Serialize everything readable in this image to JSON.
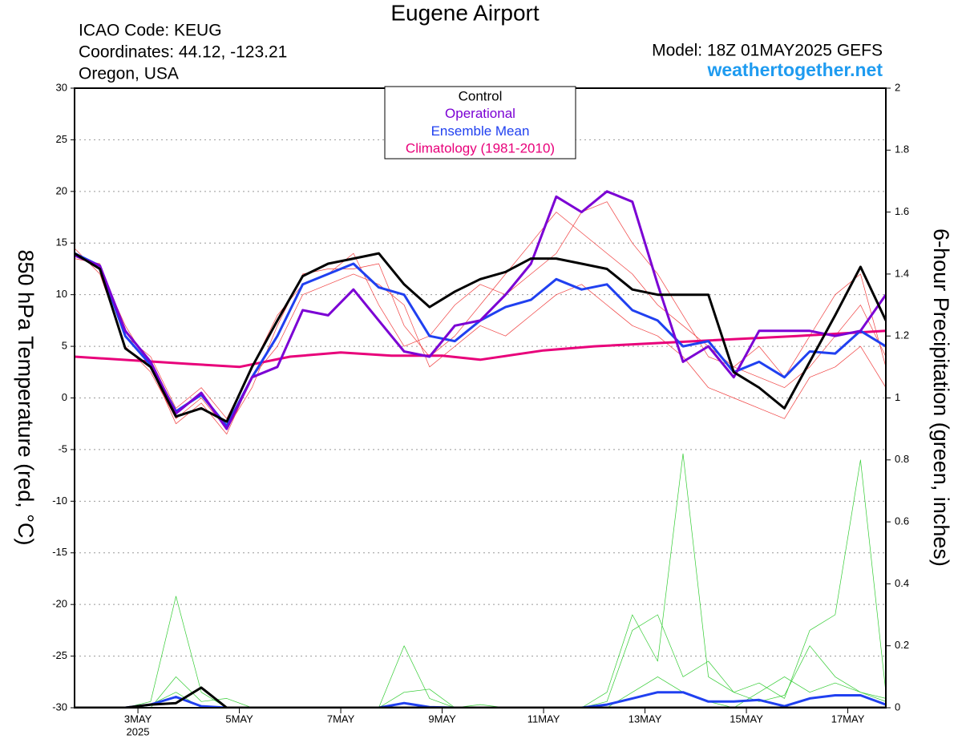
{
  "chart_data": {
    "type": "line",
    "title": "Eugene Airport",
    "info": [
      "ICAO Code: KEUG",
      "Coordinates: 44.12, -123.21",
      "Oregon, USA"
    ],
    "model": "Model: 18Z 01MAY2025 GEFS",
    "site": "weathertogether.net",
    "ylabel": "850 hPa Temperature (red, °C)",
    "y2label": "6-hour Precipitation (green, inches)",
    "year_label": "2025",
    "xlim": [
      1.75,
      17.75
    ],
    "xticks": [
      {
        "value": 3,
        "label": "3MAY"
      },
      {
        "value": 5,
        "label": "5MAY"
      },
      {
        "value": 7,
        "label": "7MAY"
      },
      {
        "value": 9,
        "label": "9MAY"
      },
      {
        "value": 11,
        "label": "11MAY"
      },
      {
        "value": 13,
        "label": "13MAY"
      },
      {
        "value": 15,
        "label": "15MAY"
      },
      {
        "value": 17,
        "label": "17MAY"
      }
    ],
    "ylim": [
      -30,
      30
    ],
    "yticks": [
      -30,
      -25,
      -20,
      -15,
      -10,
      -5,
      0,
      5,
      10,
      15,
      20,
      25,
      30
    ],
    "y2lim": [
      0,
      2
    ],
    "y2ticks": [
      0,
      0.2,
      0.4,
      0.6,
      0.8,
      1,
      1.2,
      1.4,
      1.6,
      1.8,
      2
    ],
    "grid": true,
    "x": [
      1.75,
      2.25,
      2.75,
      3.25,
      3.75,
      4.25,
      4.75,
      5.25,
      5.75,
      6.25,
      6.75,
      7.25,
      7.75,
      8.25,
      8.75,
      9.25,
      9.75,
      10.25,
      10.75,
      11.25,
      11.75,
      12.25,
      12.75,
      13.25,
      13.75,
      14.25,
      14.75,
      15.25,
      15.75,
      16.25,
      16.75,
      17.25,
      17.75
    ],
    "series": [
      {
        "color": "#f04040",
        "values": [
          14.5,
          12,
          5,
          2.5,
          -2,
          0,
          -3,
          1,
          7,
          12,
          12.5,
          12.5,
          13,
          7,
          4,
          6,
          9,
          12,
          15,
          18,
          16,
          14,
          12,
          9,
          7,
          5,
          3,
          2,
          1,
          3,
          6,
          9,
          4
        ]
      },
      {
        "color": "#f04040",
        "values": [
          13.5,
          13,
          6,
          4,
          -1,
          1,
          -2,
          3,
          8,
          11,
          12,
          14,
          9,
          5,
          6,
          9,
          11,
          10,
          12,
          14,
          18,
          19,
          15,
          12,
          8,
          4,
          3,
          5,
          2,
          6,
          10,
          12,
          3
        ]
      },
      {
        "color": "#f04040",
        "values": [
          14,
          12.5,
          7,
          3,
          -2.5,
          -0.5,
          -3.5,
          2,
          5,
          10,
          11,
          12,
          11,
          9,
          3,
          5,
          7,
          6,
          8,
          10,
          11,
          9,
          7,
          6,
          4,
          1,
          0,
          -1,
          -2,
          2,
          3,
          5,
          1
        ]
      },
      {
        "color": "#33cc33",
        "axis": "y2",
        "values": [
          0,
          0,
          0,
          0.02,
          0.36,
          0.05,
          0,
          0,
          0,
          0,
          0,
          0,
          0,
          0,
          0,
          0,
          0,
          0,
          0,
          0,
          0,
          0,
          0.05,
          0.1,
          0.05,
          0.02,
          0,
          0.05,
          0.1,
          0.05,
          0.08,
          0.05,
          0.02
        ]
      },
      {
        "color": "#33cc33",
        "axis": "y2",
        "values": [
          0,
          0,
          0,
          0,
          0.1,
          0.02,
          0.03,
          0,
          0,
          0,
          0,
          0,
          0,
          0.2,
          0.03,
          0,
          0,
          0,
          0,
          0,
          0,
          0.05,
          0.3,
          0.15,
          0.82,
          0.1,
          0.05,
          0.02,
          0.04,
          0.2,
          0.1,
          0.05,
          0.03
        ]
      },
      {
        "color": "#33cc33",
        "axis": "y2",
        "values": [
          0,
          0,
          0,
          0.01,
          0.05,
          0,
          0,
          0,
          0,
          0,
          0,
          0,
          0,
          0.05,
          0.06,
          0,
          0.01,
          0,
          0,
          0,
          0,
          0.02,
          0.25,
          0.3,
          0.1,
          0.15,
          0.05,
          0.08,
          0.03,
          0.25,
          0.3,
          0.8,
          0.05
        ]
      },
      {
        "color": "#2040f0",
        "axis": "y2",
        "values": [
          0,
          0,
          0,
          0.01,
          0.035,
          0.005,
          0,
          0,
          0,
          0,
          0,
          0,
          0,
          0.015,
          0.002,
          0,
          0,
          0,
          0,
          0,
          0,
          0.01,
          0.03,
          0.05,
          0.05,
          0.02,
          0.02,
          0.025,
          0.005,
          0.03,
          0.04,
          0.04,
          0.01
        ]
      },
      {
        "color": "#000000",
        "axis": "y2",
        "values": [
          0,
          0,
          0,
          0.01,
          0.015,
          0.065,
          0,
          0,
          0,
          0,
          0,
          0,
          0,
          0,
          0,
          0,
          0,
          0,
          0,
          0,
          0,
          0,
          0,
          0,
          0,
          0,
          0,
          0,
          0,
          0,
          0,
          0,
          0
        ]
      },
      {
        "name": "Climatology (1981-2010)",
        "color": "#e8007a",
        "x": [
          1.75,
          4,
          5,
          6,
          7,
          8,
          9,
          9.75,
          11,
          12,
          14,
          16,
          17.75
        ],
        "values": [
          4,
          3.3,
          3,
          4,
          4.4,
          4.1,
          4.1,
          3.7,
          4.6,
          5,
          5.5,
          6,
          6.5
        ]
      },
      {
        "name": "Ensemble Mean",
        "color": "#2040f0",
        "values": [
          14,
          12.8,
          6,
          3.2,
          -1.3,
          0.3,
          -2.7,
          2,
          6,
          11,
          12,
          13,
          10.7,
          10,
          6,
          5.5,
          7.5,
          8.8,
          9.5,
          11.5,
          10.5,
          11,
          8.5,
          7.5,
          5,
          5.5,
          2.5,
          3.5,
          2,
          4.5,
          4.3,
          6.5,
          5
        ]
      },
      {
        "name": "Operational",
        "color": "#7b00d4",
        "values": [
          13.8,
          12.8,
          6.5,
          3.5,
          -1.5,
          0.5,
          -3,
          2,
          3,
          8.5,
          8,
          10.5,
          7.5,
          4.5,
          4,
          7,
          7.5,
          10,
          13,
          19.5,
          18,
          20,
          19,
          11,
          3.5,
          5,
          2,
          6.5,
          6.5,
          6.5,
          6,
          6.5,
          10
        ]
      },
      {
        "name": "Control",
        "color": "#000000",
        "values": [
          14,
          12.5,
          4.8,
          3,
          -1.8,
          -1,
          -2.3,
          3,
          7.5,
          11.8,
          13,
          13.5,
          14,
          11,
          8.8,
          10.3,
          11.5,
          12.2,
          13.5,
          13.5,
          13,
          12.5,
          10.5,
          10,
          10,
          10,
          2.5,
          1,
          -1,
          3.5,
          8,
          12.7,
          7.5
        ]
      }
    ]
  }
}
